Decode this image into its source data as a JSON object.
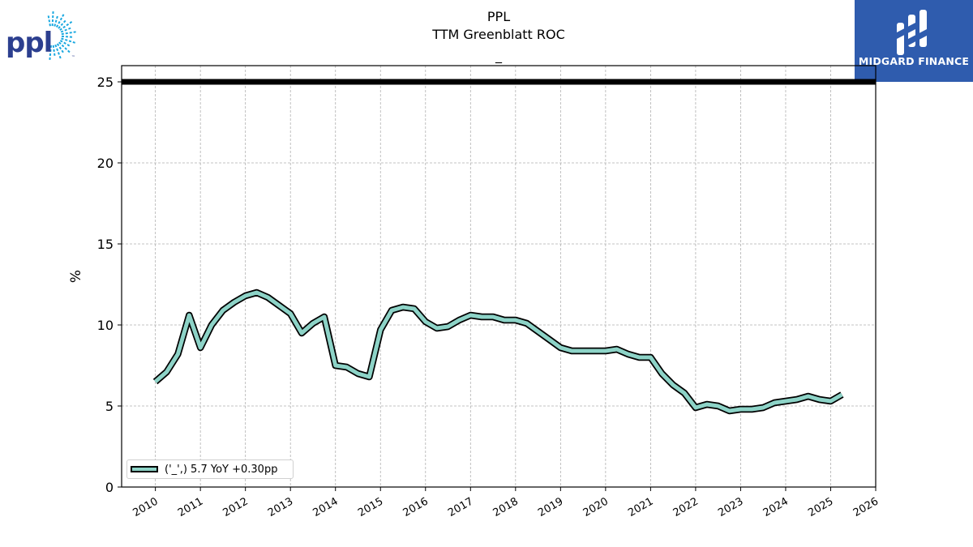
{
  "header": {
    "ticker": "PPL",
    "metric": "TTM Greenblatt ROC",
    "subtitle": "_"
  },
  "logos": {
    "left_text": "ppl",
    "left_mark": "™",
    "left_color": "#2c3f8f",
    "left_ray_color": "#1aa8e0",
    "right_text": "MIDGARD FINANCE",
    "right_bg": "#2f5cae"
  },
  "legend": {
    "label": "('_',) 5.7 YoY +0.30pp"
  },
  "chart_data": {
    "type": "line",
    "ylabel": "%",
    "ylim": [
      0,
      26
    ],
    "yticks": [
      0,
      5,
      10,
      15,
      20,
      25
    ],
    "xlim": [
      2009.25,
      2026.0
    ],
    "xticks": [
      2010,
      2011,
      2012,
      2013,
      2014,
      2015,
      2016,
      2017,
      2018,
      2019,
      2020,
      2021,
      2022,
      2023,
      2024,
      2025,
      2026
    ],
    "grid": true,
    "legend_position": "lower-left",
    "reference_line": {
      "y": 25,
      "color": "#000000"
    },
    "series": [
      {
        "color": "#8dd3c7",
        "x": [
          2010.0,
          2010.25,
          2010.5,
          2010.75,
          2011.0,
          2011.25,
          2011.5,
          2011.75,
          2012.0,
          2012.25,
          2012.5,
          2012.75,
          2013.0,
          2013.25,
          2013.5,
          2013.75,
          2014.0,
          2014.25,
          2014.5,
          2014.75,
          2015.0,
          2015.25,
          2015.5,
          2015.75,
          2016.0,
          2016.25,
          2016.5,
          2016.75,
          2017.0,
          2017.25,
          2017.5,
          2017.75,
          2018.0,
          2018.25,
          2018.5,
          2018.75,
          2019.0,
          2019.25,
          2019.5,
          2019.75,
          2020.0,
          2020.25,
          2020.5,
          2020.75,
          2021.0,
          2021.25,
          2021.5,
          2021.75,
          2022.0,
          2022.25,
          2022.5,
          2022.75,
          2023.0,
          2023.25,
          2023.5,
          2023.75,
          2024.0,
          2024.25,
          2024.5,
          2024.75,
          2025.0,
          2025.25
        ],
        "y": [
          6.5,
          7.1,
          8.2,
          10.6,
          8.6,
          10.0,
          10.9,
          11.4,
          11.8,
          12.0,
          11.7,
          11.2,
          10.7,
          9.5,
          10.1,
          10.5,
          7.5,
          7.4,
          7.0,
          6.8,
          9.7,
          10.9,
          11.1,
          11.0,
          10.2,
          9.8,
          9.9,
          10.3,
          10.6,
          10.5,
          10.5,
          10.3,
          10.3,
          10.1,
          9.6,
          9.1,
          8.6,
          8.4,
          8.4,
          8.4,
          8.4,
          8.5,
          8.2,
          8.0,
          8.0,
          7.0,
          6.3,
          5.8,
          4.9,
          5.1,
          5.0,
          4.7,
          4.8,
          4.8,
          4.9,
          5.2,
          5.3,
          5.4,
          5.6,
          5.4,
          5.3,
          5.7
        ]
      }
    ]
  }
}
